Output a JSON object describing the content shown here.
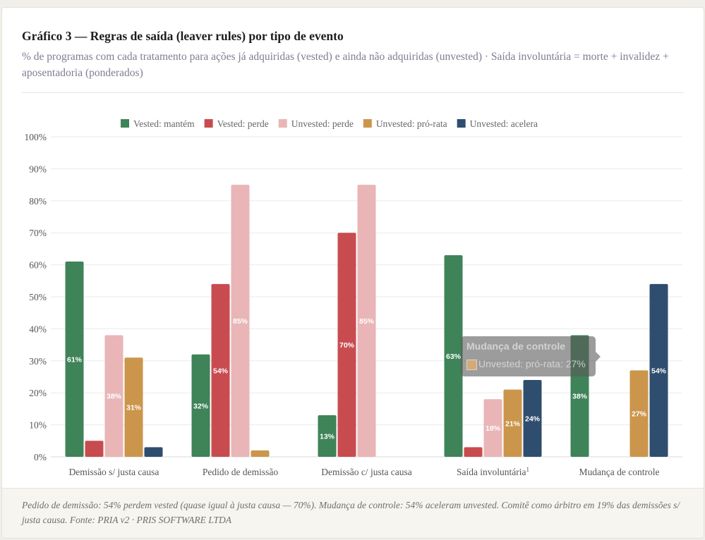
{
  "title": "Gráfico 3 — Regras de saída (leaver rules) por tipo de evento",
  "subtitle": "% de programas com cada tratamento para ações já adquiridas (vested) e ainda não adquiridas (unvested) · Saída involuntária = morte + invalidez + aposentadoria (ponderados)",
  "footer": "Pedido de demissão: 54% perdem vested (quase igual à justa causa — 70%). Mudança de controle: 54% aceleram unvested. Comitê como árbitro em 19% das demissões s/ justa causa. Fonte: PRIA v2 · PRIS SOFTWARE LTDA",
  "tooltip": {
    "title": "Mudança de controle",
    "body": "Unvested: pró-rata: 27%"
  },
  "chart_data": {
    "type": "bar",
    "categories": [
      "Demissão s/ justa causa",
      "Pedido de demissão",
      "Demissão c/ justa causa",
      "Saída involuntária",
      "Mudança de controle"
    ],
    "category_superscripts": [
      "",
      "",
      "",
      "1",
      ""
    ],
    "series": [
      {
        "name": "Vested: mantém",
        "color": "#3f8358",
        "values": [
          61,
          32,
          13,
          63,
          38
        ]
      },
      {
        "name": "Vested: perde",
        "color": "#c84c4f",
        "values": [
          5,
          54,
          70,
          3,
          0
        ]
      },
      {
        "name": "Unvested: perde",
        "color": "#e9b5b6",
        "values": [
          38,
          85,
          85,
          18,
          0
        ]
      },
      {
        "name": "Unvested: pró-rata",
        "color": "#cb964b",
        "values": [
          31,
          2,
          0,
          21,
          27
        ]
      },
      {
        "name": "Unvested: acelera",
        "color": "#2f4d6e",
        "values": [
          3,
          0,
          0,
          24,
          54
        ]
      }
    ],
    "ylim": [
      0,
      100
    ],
    "yticks": [
      "0%",
      "10%",
      "20%",
      "30%",
      "40%",
      "50%",
      "60%",
      "70%",
      "80%",
      "90%",
      "100%"
    ],
    "grid": true,
    "legend": "top-center",
    "data_label_suffix": "%"
  }
}
